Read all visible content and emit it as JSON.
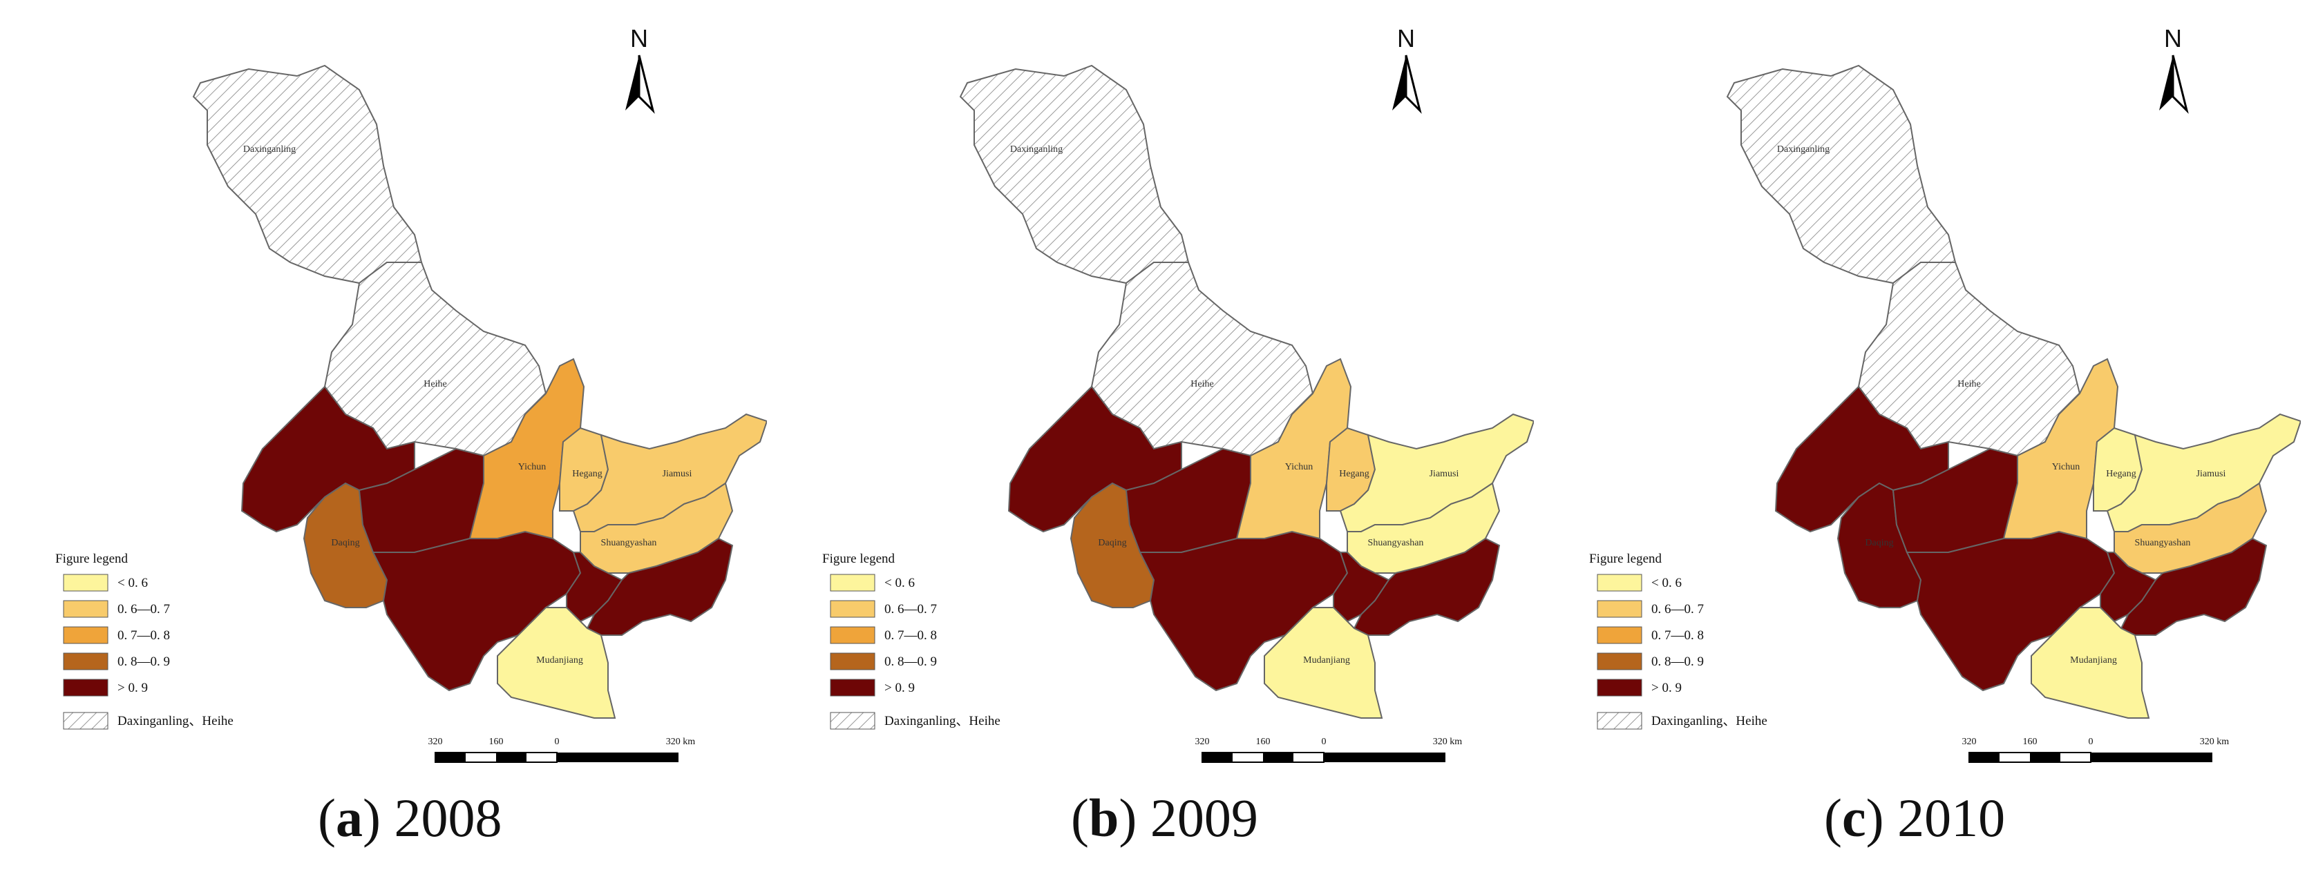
{
  "colors": {
    "lt06": "#fdf59c",
    "c0607": "#f8cb6b",
    "c0708": "#efa43a",
    "c0809": "#b5651d",
    "gt09": "#6e0606",
    "hatch": "#9a9a9a",
    "border": "#666666"
  },
  "legend": {
    "title": "Figure legend",
    "items": [
      {
        "key": "lt06",
        "label": "< 0. 6"
      },
      {
        "key": "c0607",
        "label": "0. 6—0. 7"
      },
      {
        "key": "c0708",
        "label": "0. 7—0. 8"
      },
      {
        "key": "c0809",
        "label": "0. 8—0. 9"
      },
      {
        "key": "gt09",
        "label": "> 0. 9"
      }
    ],
    "hatch_label": "Daxinganling、Heihe"
  },
  "north_label": "N",
  "scale_labels": [
    "320",
    "160",
    "0",
    "320 km"
  ],
  "region_names": {
    "daxinganling": "Daxinganling",
    "heihe": "Heihe",
    "yichun": "Yichun",
    "hegang": "Hegang",
    "jiamusi": "Jiamusi",
    "shuangyashan": "Shuangyashan",
    "mudanjiang": "Mudanjiang",
    "daqing": "Daqing"
  },
  "panels": [
    {
      "letter": "a",
      "year": "2008",
      "classes": {
        "daxinganling": "hatch",
        "heihe": "hatch",
        "qiqihar": "gt09",
        "suihua": "gt09",
        "daqing": "c0809",
        "harbin": "gt09",
        "yichun": "c0708",
        "hegang": "c0607",
        "jiamusi": "c0607",
        "shuangyashan": "c0607",
        "qitaihe": "gt09",
        "jixi": "gt09",
        "mudanjiang": "lt06"
      }
    },
    {
      "letter": "b",
      "year": "2009",
      "classes": {
        "daxinganling": "hatch",
        "heihe": "hatch",
        "qiqihar": "gt09",
        "suihua": "gt09",
        "daqing": "c0809",
        "harbin": "gt09",
        "yichun": "c0607",
        "hegang": "c0607",
        "jiamusi": "lt06",
        "shuangyashan": "lt06",
        "qitaihe": "gt09",
        "jixi": "gt09",
        "mudanjiang": "lt06"
      }
    },
    {
      "letter": "c",
      "year": "2010",
      "classes": {
        "daxinganling": "hatch",
        "heihe": "hatch",
        "qiqihar": "gt09",
        "suihua": "gt09",
        "daqing": "gt09",
        "harbin": "gt09",
        "yichun": "c0607",
        "hegang": "lt06",
        "jiamusi": "lt06",
        "shuangyashan": "c0607",
        "qitaihe": "gt09",
        "jixi": "gt09",
        "mudanjiang": "lt06"
      }
    }
  ]
}
